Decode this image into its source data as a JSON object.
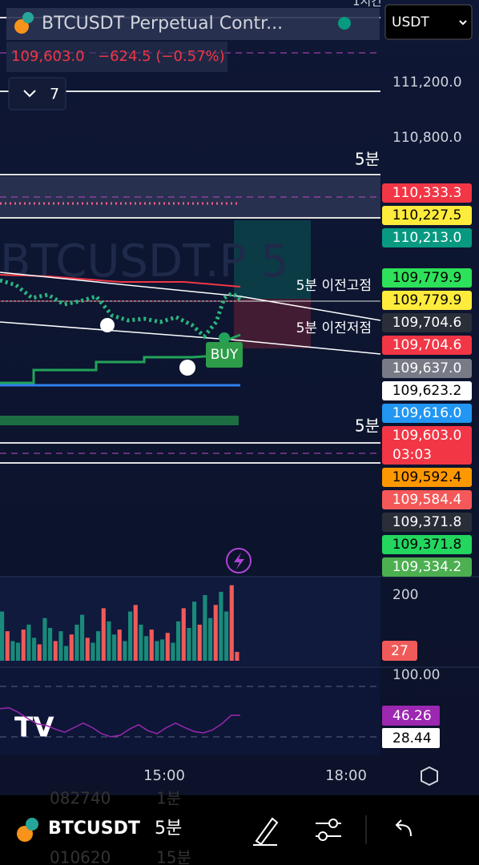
{
  "header": {
    "symbol": "BTCUSDT Perpetual Contr...",
    "price": "109,603.0",
    "change": "−624.5 (−0.57%)",
    "top_label": "1시간"
  },
  "currency": "USDT",
  "indicator_toggle": "7",
  "watermark": "BTCUSDT.P 5",
  "price_axis": [
    "111,200.0",
    "110,800.0"
  ],
  "annotations": {
    "level_top": "5분",
    "prev_high": "5분 이전고점",
    "prev_low": "5분 이전저점",
    "level_bottom": "5분",
    "buy": "BUY"
  },
  "price_tags": [
    {
      "label": "110,333.3",
      "color": "#f23645",
      "text_color": "#ffffff"
    },
    {
      "label": "110,227.5",
      "color": "#ffeb3b",
      "text_color": "#000000"
    },
    {
      "label": "110,213.0",
      "color": "#089981",
      "text_color": "#ffffff"
    },
    {
      "label": "109,779.9",
      "color": "#2ee15a",
      "text_color": "#000000"
    },
    {
      "label": "109,779.9",
      "color": "#ffeb3b",
      "text_color": "#000000"
    },
    {
      "label": "109,704.6",
      "color": "#2a2e39",
      "text_color": "#ffffff"
    },
    {
      "label": "109,704.6",
      "color": "#f23645",
      "text_color": "#ffffff"
    },
    {
      "label": "109,637.0",
      "color": "#787b86",
      "text_color": "#ffffff"
    },
    {
      "label": "109,623.2",
      "color": "#ffffff",
      "text_color": "#000000"
    },
    {
      "label": "109,616.0",
      "color": "#2196f3",
      "text_color": "#ffffff"
    },
    {
      "label": "109,603.0",
      "color": "#f23645",
      "text_color": "#ffffff",
      "countdown": "03:03"
    },
    {
      "label": "109,592.4",
      "color": "#ff9800",
      "text_color": "#000000"
    },
    {
      "label": "109,584.4",
      "color": "#f55858",
      "text_color": "#ffffff"
    },
    {
      "label": "109,371.8",
      "color": "#2a2e39",
      "text_color": "#ffffff"
    },
    {
      "label": "109,371.8",
      "color": "#22d65e",
      "text_color": "#000000"
    },
    {
      "label": "109,334.2",
      "color": "#4caf50",
      "text_color": "#ffffff"
    }
  ],
  "volume": {
    "axis_label": "200",
    "axis_value": 200,
    "last_label": "27",
    "values": [
      150,
      90,
      60,
      55,
      95,
      110,
      70,
      50,
      130,
      100,
      60,
      90,
      45,
      80,
      110,
      140,
      70,
      55,
      90,
      160,
      120,
      80,
      95,
      60,
      150,
      170,
      110,
      75,
      95,
      60,
      65,
      85,
      55,
      120,
      160,
      100,
      180,
      110,
      200,
      130,
      170,
      210,
      150,
      230,
      27
    ]
  },
  "rsi": {
    "axis_label": "100.00",
    "axis_value": 100,
    "tags": [
      "46.26",
      "28.44"
    ],
    "values": [
      55,
      56,
      50,
      42,
      35,
      33,
      28,
      24,
      30,
      36,
      30,
      22,
      18,
      20,
      28,
      34,
      26,
      22,
      30,
      36,
      30,
      25,
      23,
      27,
      35,
      46,
      46.26
    ]
  },
  "time_axis": [
    "15:00",
    "18:00"
  ],
  "bottom_bar": {
    "symbol": "BTCUSDT",
    "interval": "5분",
    "ghost": [
      "082740",
      "1분",
      "010620",
      "15분"
    ]
  }
}
